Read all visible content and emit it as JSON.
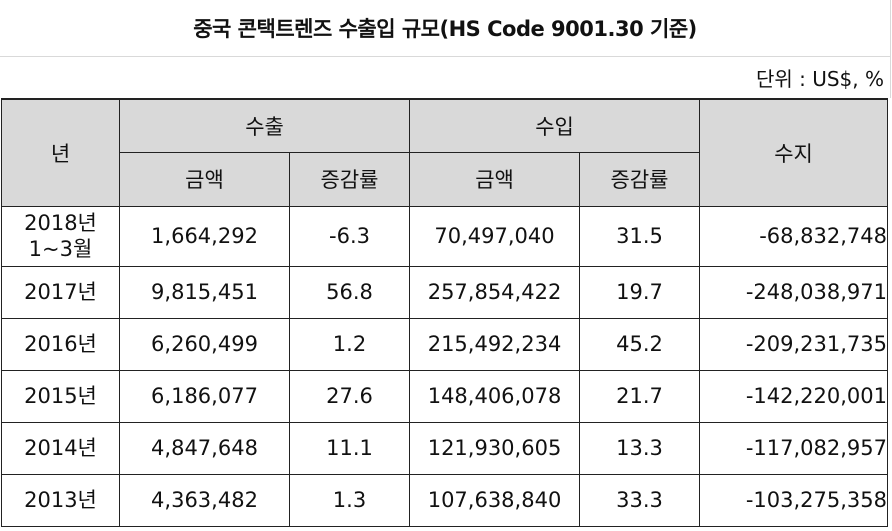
{
  "title": "중국 콘택트렌즈 수출입 규모(HS Code 9001.30 기준)",
  "unit": "단위 : US$, %",
  "headers": {
    "year": "년",
    "export": "수출",
    "import": "수입",
    "balance": "수지",
    "amount": "금액",
    "change": "증감률"
  },
  "rows": [
    {
      "year": "2018년",
      "period": "1~3월",
      "export_amount": "1,664,292",
      "export_change": "-6.3",
      "import_amount": "70,497,040",
      "import_change": "31.5",
      "balance": "-68,832,748"
    },
    {
      "year": "2017년",
      "export_amount": "9,815,451",
      "export_change": "56.8",
      "import_amount": "257,854,422",
      "import_change": "19.7",
      "balance": "-248,038,971"
    },
    {
      "year": "2016년",
      "export_amount": "6,260,499",
      "export_change": "1.2",
      "import_amount": "215,492,234",
      "import_change": "45.2",
      "balance": "-209,231,735"
    },
    {
      "year": "2015년",
      "export_amount": "6,186,077",
      "export_change": "27.6",
      "import_amount": "148,406,078",
      "import_change": "21.7",
      "balance": "-142,220,001"
    },
    {
      "year": "2014년",
      "export_amount": "4,847,648",
      "export_change": "11.1",
      "import_amount": "121,930,605",
      "import_change": "13.3",
      "balance": "-117,082,957"
    },
    {
      "year": "2013년",
      "export_amount": "4,363,482",
      "export_change": "1.3",
      "import_amount": "107,638,840",
      "import_change": "33.3",
      "balance": "-103,275,358"
    }
  ]
}
